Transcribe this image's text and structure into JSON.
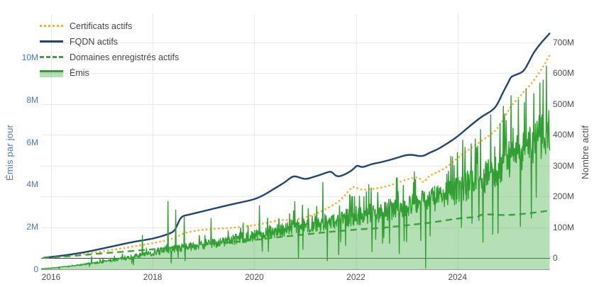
{
  "chart_data": {
    "type": "line",
    "title": "",
    "x": {
      "range": [
        2015.805,
        2025.82
      ],
      "tick_values": [
        2016,
        2018,
        2020,
        2022,
        2024
      ],
      "tick_labels": [
        "2016",
        "2018",
        "2020",
        "2022",
        "2024"
      ],
      "tick_color": "#4d4d4d",
      "grid": true
    },
    "y_left": {
      "label": "Émis par jour",
      "color": "#4679ca",
      "range": [
        0,
        12.05
      ],
      "unit": "millions par jour",
      "tick_values": [
        0,
        2,
        4,
        6,
        8,
        10
      ],
      "tick_labels": [
        "0",
        "2M",
        "4M",
        "6M",
        "8M",
        "10M"
      ],
      "grid": false
    },
    "y_right": {
      "label": "Nombre actif",
      "color": "#4d4d4d",
      "range": [
        -37,
        792
      ],
      "unit": "millions",
      "tick_values": [
        0,
        100,
        200,
        300,
        400,
        500,
        600,
        700
      ],
      "tick_labels": [
        "0",
        "100M",
        "200M",
        "300M",
        "400M",
        "500M",
        "600M",
        "700M"
      ],
      "grid": true
    },
    "grid_style": {
      "line_color": "#e9e9e9",
      "zero_line_color": "#404040",
      "x_axis_line_color": "#999999"
    },
    "legend_position": "top-left",
    "series": [
      {
        "name": "Certificats actifs",
        "axis": "right",
        "style": "dotted",
        "color": "#fbab1f",
        "width": 2.4,
        "points": [
          [
            2015.84,
            0.3
          ],
          [
            2016,
            2
          ],
          [
            2016.5,
            9
          ],
          [
            2017,
            21
          ],
          [
            2017.5,
            34
          ],
          [
            2017.9,
            45
          ],
          [
            2018.2,
            54
          ],
          [
            2018.45,
            65
          ],
          [
            2018.6,
            80
          ],
          [
            2018.8,
            87
          ],
          [
            2019,
            92
          ],
          [
            2019.25,
            95
          ],
          [
            2019.5,
            97
          ],
          [
            2019.75,
            101
          ],
          [
            2020,
            106
          ],
          [
            2020.25,
            114
          ],
          [
            2020.5,
            124
          ],
          [
            2020.7,
            122
          ],
          [
            2020.85,
            126
          ],
          [
            2021,
            132
          ],
          [
            2021.2,
            142
          ],
          [
            2021.4,
            158
          ],
          [
            2021.6,
            176
          ],
          [
            2021.75,
            196
          ],
          [
            2021.94,
            235
          ],
          [
            2022.05,
            224
          ],
          [
            2022.15,
            221
          ],
          [
            2022.35,
            224
          ],
          [
            2022.6,
            232
          ],
          [
            2022.8,
            243
          ],
          [
            2023.05,
            258
          ],
          [
            2023.25,
            263
          ],
          [
            2023.33,
            241
          ],
          [
            2023.42,
            265
          ],
          [
            2023.55,
            275
          ],
          [
            2023.75,
            290
          ],
          [
            2024,
            325
          ],
          [
            2024.2,
            350
          ],
          [
            2024.4,
            372
          ],
          [
            2024.6,
            395
          ],
          [
            2024.77,
            416
          ],
          [
            2024.9,
            450
          ],
          [
            2025.05,
            493
          ],
          [
            2025.2,
            520
          ],
          [
            2025.3,
            540
          ],
          [
            2025.45,
            565
          ],
          [
            2025.6,
            600
          ],
          [
            2025.7,
            625
          ],
          [
            2025.78,
            650
          ],
          [
            2025.82,
            660
          ]
        ]
      },
      {
        "name": "FQDN actifs",
        "axis": "right",
        "style": "solid",
        "color": "#1f4478",
        "width": 2.4,
        "points": [
          [
            2015.84,
            0.4
          ],
          [
            2016,
            3
          ],
          [
            2016.25,
            8
          ],
          [
            2016.5,
            14
          ],
          [
            2016.75,
            21
          ],
          [
            2017,
            30
          ],
          [
            2017.25,
            39
          ],
          [
            2017.5,
            48
          ],
          [
            2017.75,
            56
          ],
          [
            2018,
            62
          ],
          [
            2018.25,
            74
          ],
          [
            2018.42,
            85
          ],
          [
            2018.48,
            105
          ],
          [
            2018.56,
            135
          ],
          [
            2018.7,
            140
          ],
          [
            2019,
            152
          ],
          [
            2019.25,
            162
          ],
          [
            2019.5,
            172
          ],
          [
            2019.75,
            181
          ],
          [
            2020,
            190
          ],
          [
            2020.2,
            205
          ],
          [
            2020.4,
            226
          ],
          [
            2020.6,
            245
          ],
          [
            2020.76,
            267
          ],
          [
            2020.88,
            262
          ],
          [
            2021,
            255
          ],
          [
            2021.15,
            262
          ],
          [
            2021.3,
            270
          ],
          [
            2021.45,
            279
          ],
          [
            2021.52,
            281
          ],
          [
            2021.63,
            262
          ],
          [
            2021.8,
            272
          ],
          [
            2021.95,
            288
          ],
          [
            2022.02,
            302
          ],
          [
            2022.12,
            293
          ],
          [
            2022.3,
            305
          ],
          [
            2022.5,
            311
          ],
          [
            2022.75,
            322
          ],
          [
            2023.05,
            338
          ],
          [
            2023.3,
            328
          ],
          [
            2023.45,
            342
          ],
          [
            2023.6,
            352
          ],
          [
            2023.8,
            372
          ],
          [
            2024,
            394
          ],
          [
            2024.25,
            430
          ],
          [
            2024.5,
            462
          ],
          [
            2024.65,
            475
          ],
          [
            2024.77,
            493
          ],
          [
            2024.9,
            540
          ],
          [
            2025,
            570
          ],
          [
            2025.05,
            589
          ],
          [
            2025.15,
            595
          ],
          [
            2025.3,
            605
          ],
          [
            2025.4,
            635
          ],
          [
            2025.5,
            668
          ],
          [
            2025.65,
            700
          ],
          [
            2025.75,
            718
          ],
          [
            2025.82,
            731
          ]
        ]
      },
      {
        "name": "Domaines enregistrés actifs",
        "axis": "right",
        "style": "dashed",
        "color": "#3ba33b",
        "width": 2.4,
        "points": [
          [
            2015.84,
            0.2
          ],
          [
            2016,
            1.5
          ],
          [
            2016.5,
            7
          ],
          [
            2017,
            15
          ],
          [
            2017.5,
            21
          ],
          [
            2018,
            28
          ],
          [
            2018.5,
            35
          ],
          [
            2019,
            43
          ],
          [
            2019.5,
            50
          ],
          [
            2020,
            58
          ],
          [
            2020.5,
            68
          ],
          [
            2021,
            76
          ],
          [
            2021.5,
            85
          ],
          [
            2022,
            92
          ],
          [
            2022.5,
            97
          ],
          [
            2023,
            106
          ],
          [
            2023.5,
            115
          ],
          [
            2024,
            128
          ],
          [
            2024.2,
            131
          ],
          [
            2024.42,
            133
          ],
          [
            2024.46,
            142
          ],
          [
            2024.7,
            141
          ],
          [
            2024.9,
            139
          ],
          [
            2025.1,
            140
          ],
          [
            2025.3,
            143
          ],
          [
            2025.5,
            147
          ],
          [
            2025.7,
            151
          ],
          [
            2025.82,
            154
          ]
        ]
      },
      {
        "name": "Émis",
        "axis": "left",
        "style": "area",
        "color": "#319f31",
        "width": 1.4,
        "fill_color": "rgba(92,184,92,0.45)",
        "trend": [
          [
            2015.805,
            0.02
          ],
          [
            2016,
            0.05
          ],
          [
            2016.5,
            0.18
          ],
          [
            2017,
            0.35
          ],
          [
            2017.5,
            0.55
          ],
          [
            2018,
            0.75
          ],
          [
            2018.5,
            1.0
          ],
          [
            2019,
            1.15
          ],
          [
            2019.5,
            1.35
          ],
          [
            2020,
            1.6
          ],
          [
            2020.5,
            1.85
          ],
          [
            2021,
            2.1
          ],
          [
            2021.5,
            2.25
          ],
          [
            2022,
            2.5
          ],
          [
            2022.5,
            2.7
          ],
          [
            2023,
            3.0
          ],
          [
            2023.5,
            3.3
          ],
          [
            2024,
            3.7
          ],
          [
            2024.5,
            4.3
          ],
          [
            2025,
            5.2
          ],
          [
            2025.4,
            5.9
          ],
          [
            2025.82,
            6.6
          ]
        ],
        "spikes": [
          [
            2016.8,
            0.6
          ],
          [
            2017.8,
            1.6
          ],
          [
            2018.3,
            3.2
          ],
          [
            2018.45,
            2.8
          ],
          [
            2018.62,
            2.5
          ],
          [
            2019.15,
            2.4
          ],
          [
            2020.1,
            3.0
          ],
          [
            2020.8,
            3.2
          ],
          [
            2021.35,
            4.1
          ],
          [
            2022.25,
            4.0
          ],
          [
            2022.8,
            4.3
          ],
          [
            2023.15,
            4.6
          ],
          [
            2023.9,
            5.3
          ],
          [
            2024.1,
            6.1
          ],
          [
            2024.45,
            6.6
          ],
          [
            2024.65,
            7.3
          ],
          [
            2024.9,
            7.7
          ],
          [
            2025.05,
            8.2
          ],
          [
            2025.2,
            8.0
          ],
          [
            2025.35,
            8.5
          ],
          [
            2025.5,
            8.3
          ],
          [
            2025.62,
            8.8
          ],
          [
            2025.75,
            9.6
          ]
        ],
        "dips": [
          [
            2021.44,
            0.4
          ],
          [
            2021.7,
            1.3
          ],
          [
            2023.0,
            1.3
          ],
          [
            2023.37,
            0.06
          ],
          [
            2024.42,
            2.3
          ],
          [
            2025.55,
            3.4
          ]
        ],
        "noise": {
          "seed": 7,
          "rel": 0.18,
          "spike_chance": 0.07,
          "spike_rel_min": 0.15,
          "spike_rel_max": 0.5,
          "dip_chance": 0.025,
          "dip_rel_min": 0.45,
          "dip_rel_max": 0.75,
          "step_years": 0.008
        }
      }
    ]
  },
  "legend": {
    "items": [
      {
        "label": "Certificats actifs",
        "swatch": "dotted-line",
        "color": "#fbab1f"
      },
      {
        "label": "FQDN actifs",
        "swatch": "solid-line",
        "color": "#1f4478"
      },
      {
        "label": "Domaines enregistrés actifs",
        "swatch": "dashed-line",
        "color": "#3ba33b"
      },
      {
        "label": "Émis",
        "swatch": "area-band",
        "color": "#319f31",
        "fill": "rgba(92,184,92,0.45)"
      }
    ]
  }
}
